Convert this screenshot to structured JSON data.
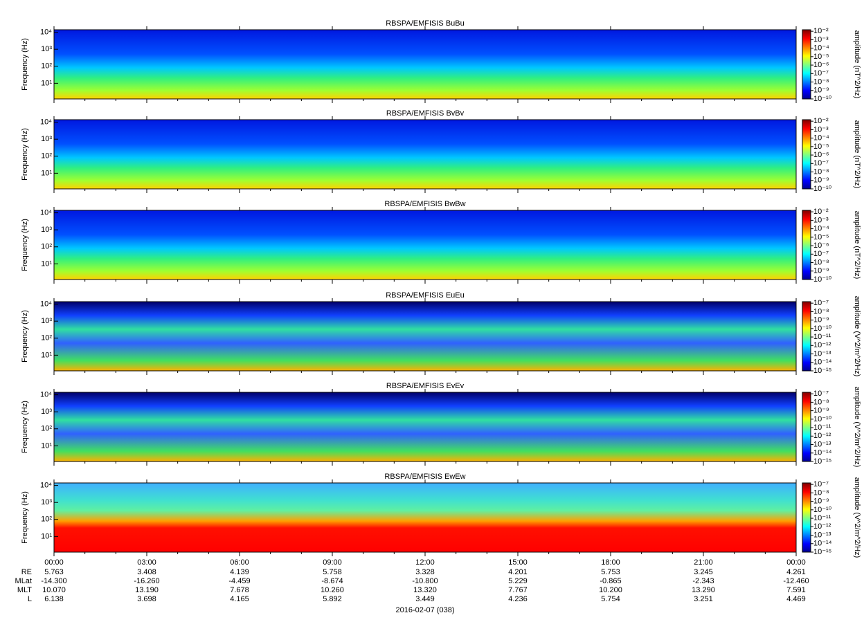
{
  "chart_data": [
    {
      "type": "spectrogram",
      "title": "RBSPA/EMFISIS  BuBu",
      "ylabel": "Frequency (Hz)",
      "yscale": "log",
      "ylim": [
        1.2,
        14000
      ],
      "yticks": [
        {
          "value": 10,
          "label": "10¹"
        },
        {
          "value": 100,
          "label": "10²"
        },
        {
          "value": 1000,
          "label": "10³"
        },
        {
          "value": 10000,
          "label": "10⁴"
        }
      ],
      "colormap": "jet",
      "colorbar_label": "amplitude (nT^2/Hz)",
      "clim": [
        1e-10,
        0.015
      ],
      "cticks": [
        {
          "value": 0.01,
          "label": "10⁻²"
        },
        {
          "value": 0.001,
          "label": "10⁻³"
        },
        {
          "value": 0.0001,
          "label": "10⁻⁴"
        },
        {
          "value": 1e-05,
          "label": "10⁻⁵"
        },
        {
          "value": 1e-06,
          "label": "10⁻⁶"
        },
        {
          "value": 1e-07,
          "label": "10⁻⁷"
        },
        {
          "value": 1e-08,
          "label": "10⁻⁸"
        },
        {
          "value": 1e-09,
          "label": "10⁻⁹"
        },
        {
          "value": 1e-10,
          "label": "10⁻¹⁰"
        }
      ],
      "style": "magnetic"
    },
    {
      "type": "spectrogram",
      "title": "RBSPA/EMFISIS  BvBv",
      "ylabel": "Frequency (Hz)",
      "yscale": "log",
      "ylim": [
        1.2,
        14000
      ],
      "yticks": [
        {
          "value": 10,
          "label": "10¹"
        },
        {
          "value": 100,
          "label": "10²"
        },
        {
          "value": 1000,
          "label": "10³"
        },
        {
          "value": 10000,
          "label": "10⁴"
        }
      ],
      "colormap": "jet",
      "colorbar_label": "amplitude (nT^2/Hz)",
      "clim": [
        1e-10,
        0.015
      ],
      "cticks": [
        {
          "value": 0.01,
          "label": "10⁻²"
        },
        {
          "value": 0.001,
          "label": "10⁻³"
        },
        {
          "value": 0.0001,
          "label": "10⁻⁴"
        },
        {
          "value": 1e-05,
          "label": "10⁻⁵"
        },
        {
          "value": 1e-06,
          "label": "10⁻⁶"
        },
        {
          "value": 1e-07,
          "label": "10⁻⁷"
        },
        {
          "value": 1e-08,
          "label": "10⁻⁸"
        },
        {
          "value": 1e-09,
          "label": "10⁻⁹"
        },
        {
          "value": 1e-10,
          "label": "10⁻¹⁰"
        }
      ],
      "style": "magnetic"
    },
    {
      "type": "spectrogram",
      "title": "RBSPA/EMFISIS  BwBw",
      "ylabel": "Frequency (Hz)",
      "yscale": "log",
      "ylim": [
        1.2,
        14000
      ],
      "yticks": [
        {
          "value": 10,
          "label": "10¹"
        },
        {
          "value": 100,
          "label": "10²"
        },
        {
          "value": 1000,
          "label": "10³"
        },
        {
          "value": 10000,
          "label": "10⁴"
        }
      ],
      "colormap": "jet",
      "colorbar_label": "amplitude (nT^2/Hz)",
      "clim": [
        1e-10,
        0.015
      ],
      "cticks": [
        {
          "value": 0.01,
          "label": "10⁻²"
        },
        {
          "value": 0.001,
          "label": "10⁻³"
        },
        {
          "value": 0.0001,
          "label": "10⁻⁴"
        },
        {
          "value": 1e-05,
          "label": "10⁻⁵"
        },
        {
          "value": 1e-06,
          "label": "10⁻⁶"
        },
        {
          "value": 1e-07,
          "label": "10⁻⁷"
        },
        {
          "value": 1e-08,
          "label": "10⁻⁸"
        },
        {
          "value": 1e-09,
          "label": "10⁻⁹"
        },
        {
          "value": 1e-10,
          "label": "10⁻¹⁰"
        }
      ],
      "style": "magnetic"
    },
    {
      "type": "spectrogram",
      "title": "RBSPA/EMFISIS  EuEu",
      "ylabel": "Frequency (Hz)",
      "yscale": "log",
      "ylim": [
        1.2,
        14000
      ],
      "yticks": [
        {
          "value": 10,
          "label": "10¹"
        },
        {
          "value": 100,
          "label": "10²"
        },
        {
          "value": 1000,
          "label": "10³"
        },
        {
          "value": 10000,
          "label": "10⁴"
        }
      ],
      "colormap": "jet",
      "colorbar_label": "amplitude (V^2/m^2/Hz)",
      "clim": [
        1e-15,
        1.5e-07
      ],
      "cticks": [
        {
          "value": 1e-07,
          "label": "10⁻⁷"
        },
        {
          "value": 1e-08,
          "label": "10⁻⁸"
        },
        {
          "value": 1e-09,
          "label": "10⁻⁹"
        },
        {
          "value": 1e-10,
          "label": "10⁻¹⁰"
        },
        {
          "value": 1e-11,
          "label": "10⁻¹¹"
        },
        {
          "value": 1e-12,
          "label": "10⁻¹²"
        },
        {
          "value": 1e-13,
          "label": "10⁻¹³"
        },
        {
          "value": 1e-14,
          "label": "10⁻¹⁴"
        },
        {
          "value": 1e-15,
          "label": "10⁻¹⁵"
        }
      ],
      "style": "electric"
    },
    {
      "type": "spectrogram",
      "title": "RBSPA/EMFISIS  EvEv",
      "ylabel": "Frequency (Hz)",
      "yscale": "log",
      "ylim": [
        1.2,
        14000
      ],
      "yticks": [
        {
          "value": 10,
          "label": "10¹"
        },
        {
          "value": 100,
          "label": "10²"
        },
        {
          "value": 1000,
          "label": "10³"
        },
        {
          "value": 10000,
          "label": "10⁴"
        }
      ],
      "colormap": "jet",
      "colorbar_label": "amplitude (V^2/m^2/Hz)",
      "clim": [
        1e-15,
        1.5e-07
      ],
      "cticks": [
        {
          "value": 1e-07,
          "label": "10⁻⁷"
        },
        {
          "value": 1e-08,
          "label": "10⁻⁸"
        },
        {
          "value": 1e-09,
          "label": "10⁻⁹"
        },
        {
          "value": 1e-10,
          "label": "10⁻¹⁰"
        },
        {
          "value": 1e-11,
          "label": "10⁻¹¹"
        },
        {
          "value": 1e-12,
          "label": "10⁻¹²"
        },
        {
          "value": 1e-13,
          "label": "10⁻¹³"
        },
        {
          "value": 1e-14,
          "label": "10⁻¹⁴"
        },
        {
          "value": 1e-15,
          "label": "10⁻¹⁵"
        }
      ],
      "style": "electric"
    },
    {
      "type": "spectrogram",
      "title": "RBSPA/EMFISIS  EwEw",
      "ylabel": "Frequency (Hz)",
      "yscale": "log",
      "ylim": [
        1.2,
        14000
      ],
      "yticks": [
        {
          "value": 10,
          "label": "10¹"
        },
        {
          "value": 100,
          "label": "10²"
        },
        {
          "value": 1000,
          "label": "10³"
        },
        {
          "value": 10000,
          "label": "10⁴"
        }
      ],
      "colormap": "jet",
      "colorbar_label": "amplitude (V^2/m^2/Hz)",
      "clim": [
        1e-15,
        1.5e-07
      ],
      "cticks": [
        {
          "value": 1e-07,
          "label": "10⁻⁷"
        },
        {
          "value": 1e-08,
          "label": "10⁻⁸"
        },
        {
          "value": 1e-09,
          "label": "10⁻⁹"
        },
        {
          "value": 1e-10,
          "label": "10⁻¹⁰"
        },
        {
          "value": 1e-11,
          "label": "10⁻¹¹"
        },
        {
          "value": 1e-12,
          "label": "10⁻¹²"
        },
        {
          "value": 1e-13,
          "label": "10⁻¹³"
        },
        {
          "value": 1e-14,
          "label": "10⁻¹⁴"
        },
        {
          "value": 1e-15,
          "label": "10⁻¹⁵"
        }
      ],
      "style": "axial"
    }
  ],
  "x_axis": {
    "xlim": [
      0,
      24
    ],
    "xticks": [
      {
        "value": 0,
        "label": "00:00"
      },
      {
        "value": 3,
        "label": "03:00"
      },
      {
        "value": 6,
        "label": "06:00"
      },
      {
        "value": 9,
        "label": "09:00"
      },
      {
        "value": 12,
        "label": "12:00"
      },
      {
        "value": 15,
        "label": "15:00"
      },
      {
        "value": 18,
        "label": "18:00"
      },
      {
        "value": 21,
        "label": "21:00"
      },
      {
        "value": 24,
        "label": "00:00"
      }
    ]
  },
  "ephemeris": {
    "rows": [
      {
        "label": "RE",
        "values": [
          "5.763",
          "3.408",
          "4.139",
          "5.758",
          "3.328",
          "4.201",
          "5.753",
          "3.245",
          "4.261"
        ]
      },
      {
        "label": "MLat",
        "values": [
          "-14.300",
          "-16.260",
          "-4.459",
          "-8.674",
          "-10.800",
          "5.229",
          "-0.865",
          "-2.343",
          "-12.460"
        ]
      },
      {
        "label": "MLT",
        "values": [
          "10.070",
          "13.190",
          "7.678",
          "10.260",
          "13.320",
          "7.767",
          "10.200",
          "13.290",
          "7.591"
        ]
      },
      {
        "label": "L",
        "values": [
          "6.138",
          "3.698",
          "4.165",
          "5.892",
          "3.449",
          "4.236",
          "5.754",
          "3.251",
          "4.469"
        ]
      }
    ]
  },
  "date": "2016-02-07 (038)"
}
